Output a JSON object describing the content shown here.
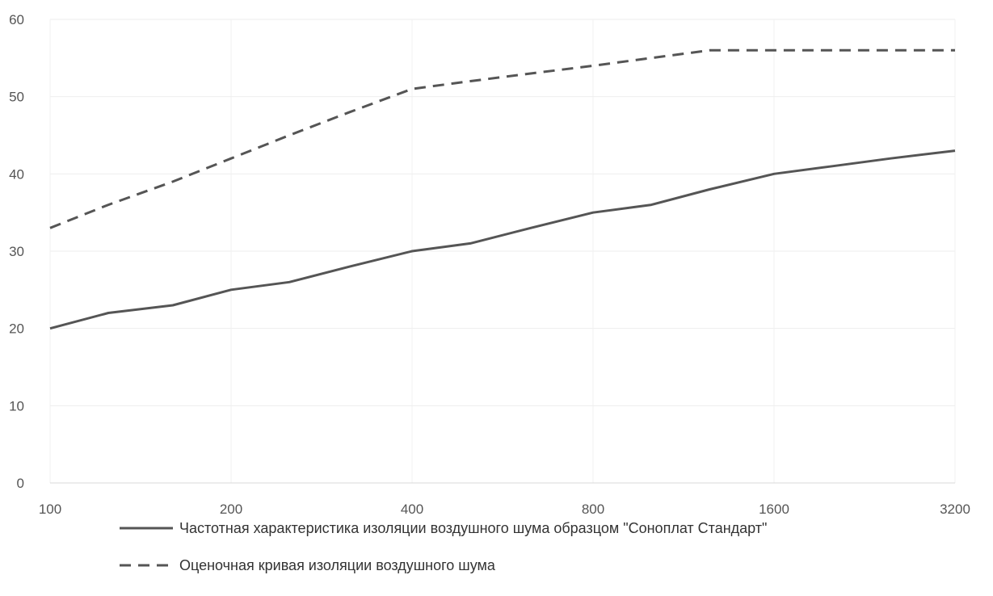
{
  "chart_data": {
    "type": "line",
    "x_scale": "log2",
    "x": [
      100,
      125,
      160,
      200,
      250,
      315,
      400,
      500,
      630,
      800,
      1000,
      1250,
      1600,
      2000,
      2500,
      3200
    ],
    "x_ticks": [
      "100",
      "200",
      "400",
      "800",
      "1600",
      "3200"
    ],
    "y_ticks": [
      "0",
      "10",
      "20",
      "30",
      "40",
      "50",
      "60"
    ],
    "ylim": [
      0,
      60
    ],
    "xlim": [
      100,
      3200
    ],
    "grid": true,
    "legend_position": "bottom",
    "series": [
      {
        "name": "Частотная характеристика изоляции воздушного шума образцом \"Сонoплат Стандарт\"",
        "style": "solid",
        "color": "#555555",
        "values": [
          20,
          22,
          23,
          25,
          26,
          28,
          30,
          31,
          33,
          35,
          36,
          38,
          40,
          41,
          42,
          43
        ]
      },
      {
        "name": "Оценочная кривая изоляции воздушного шума",
        "style": "dashed",
        "color": "#555555",
        "values": [
          33,
          36,
          39,
          42,
          45,
          48,
          51,
          52,
          53,
          54,
          55,
          56,
          56,
          56,
          56,
          56
        ]
      }
    ]
  }
}
